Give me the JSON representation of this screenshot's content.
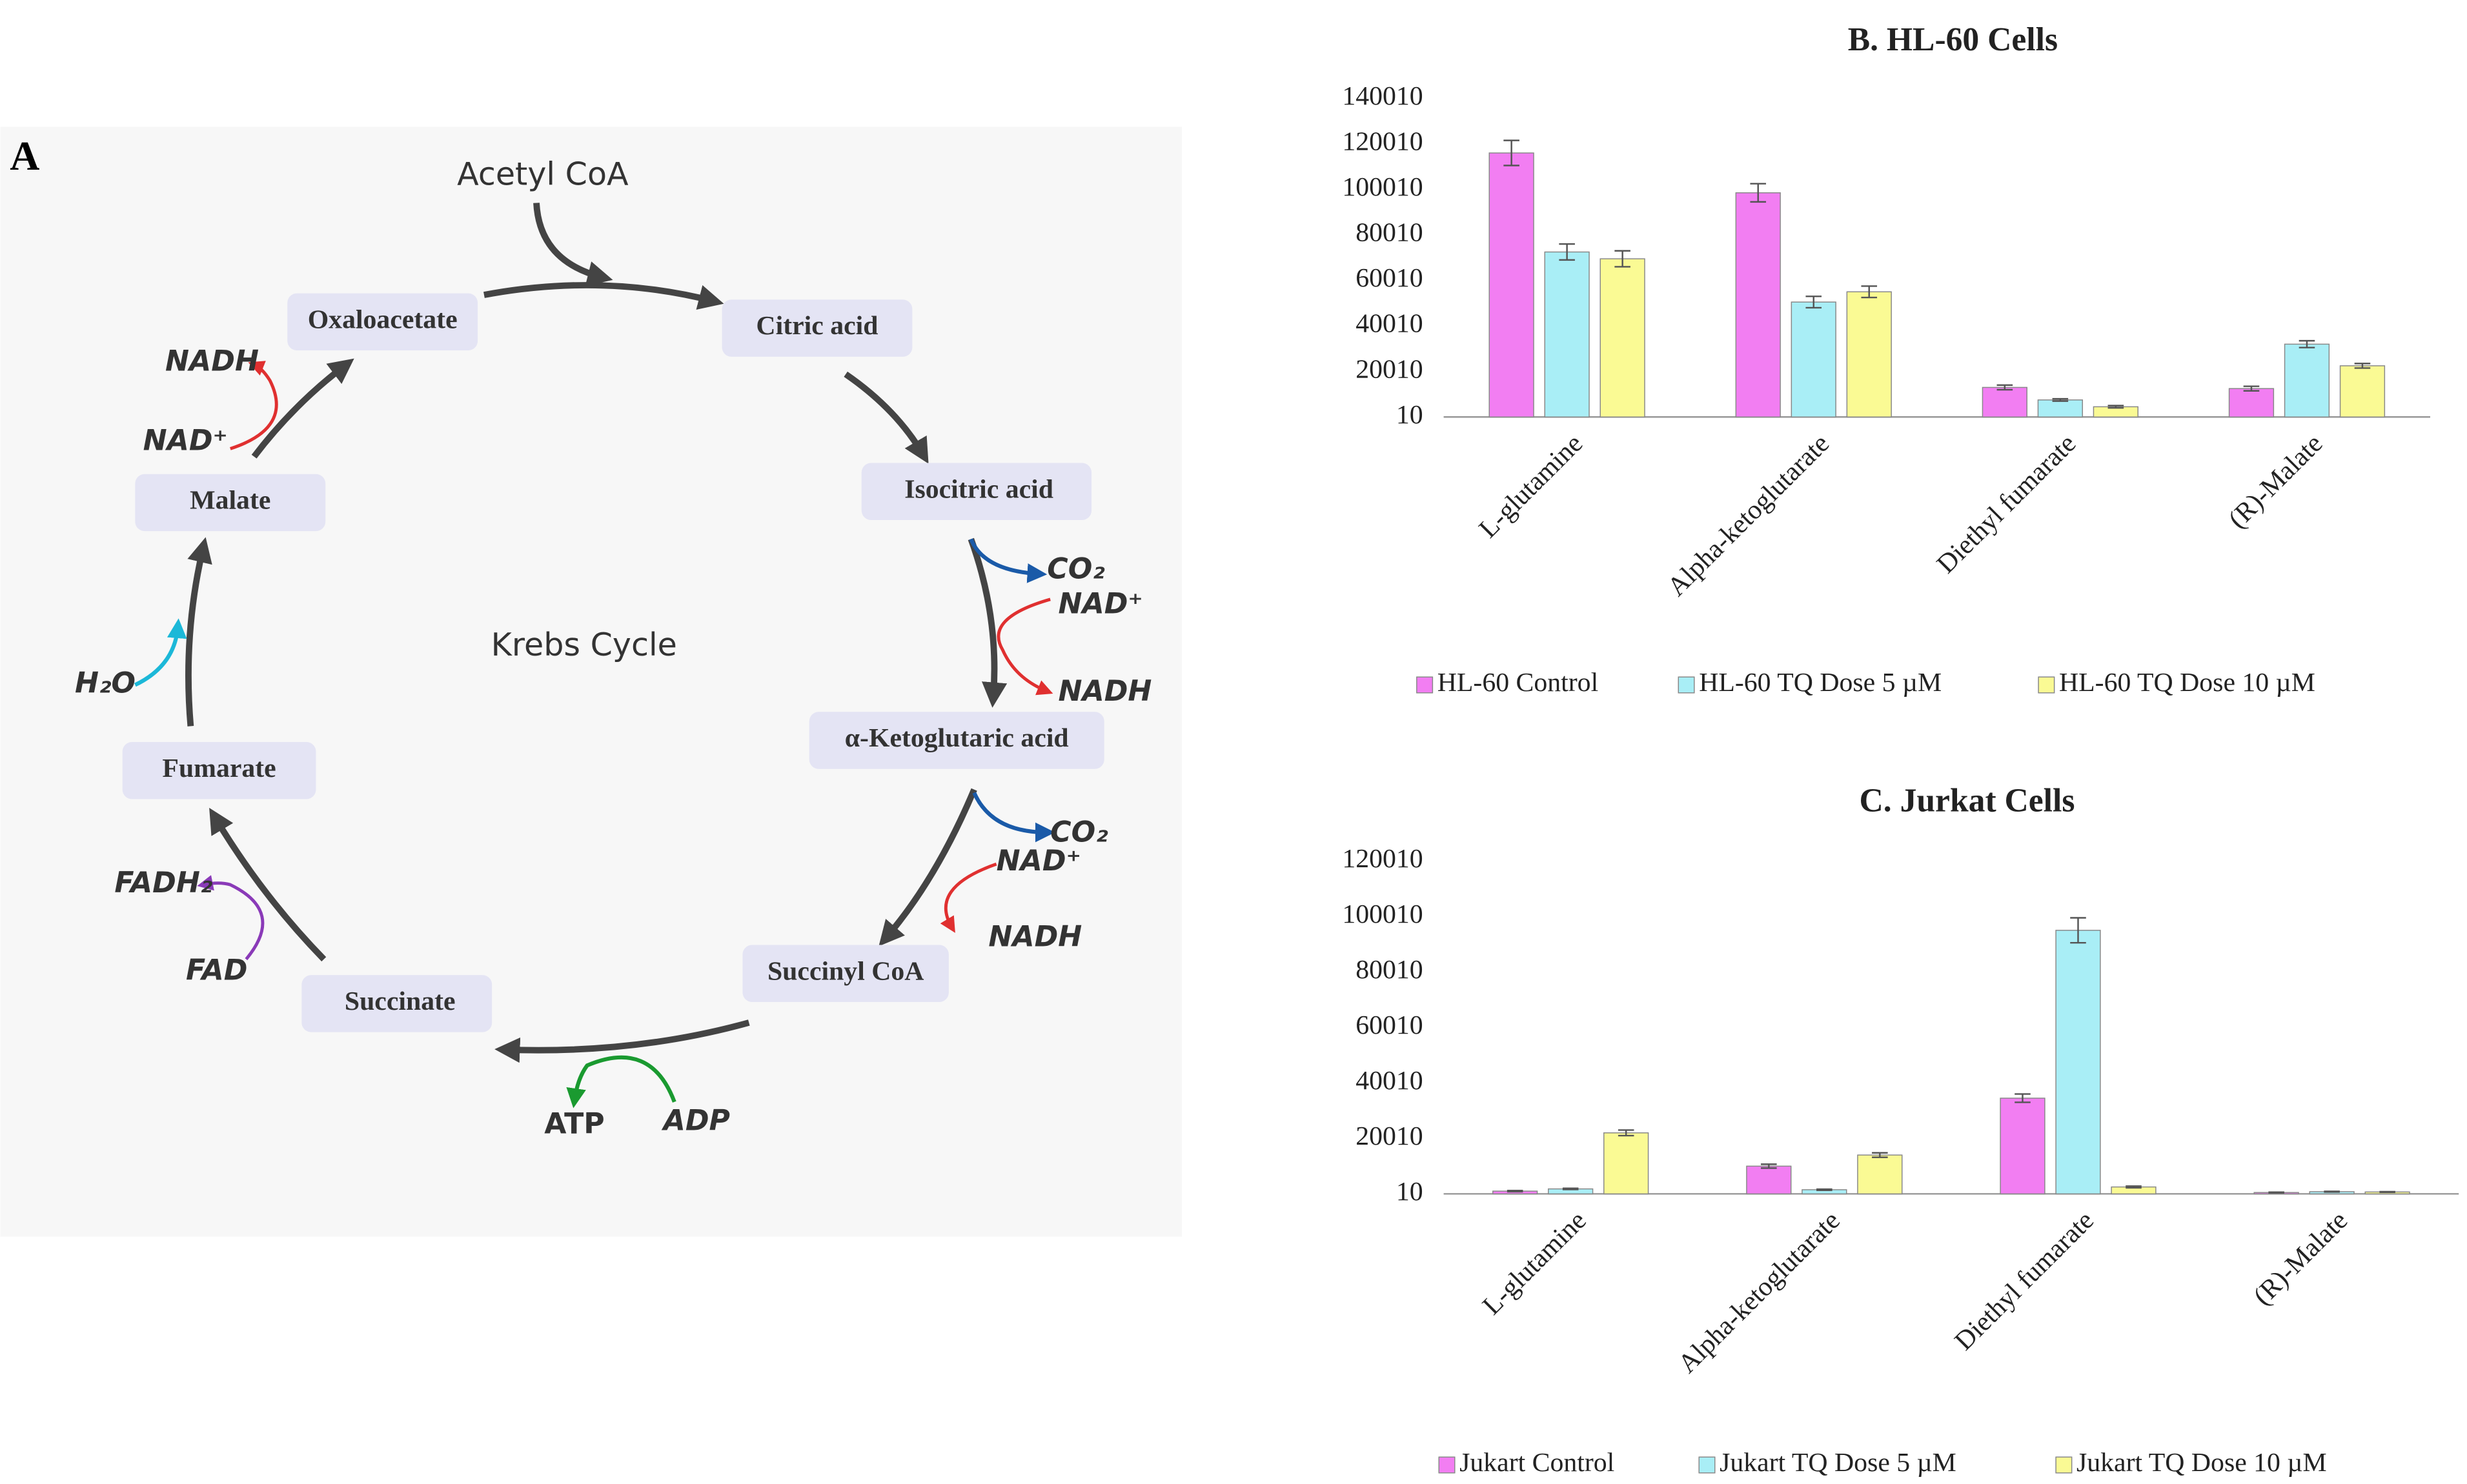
{
  "panel_label": "A",
  "diagram": {
    "title": "Krebs Cycle",
    "input": "Acetyl CoA",
    "nodes": [
      "Oxaloacetate",
      "Citric acid",
      "Isocitric acid",
      "α-Ketoglutaric acid",
      "Succinyl CoA",
      "Succinate",
      "Fumarate",
      "Malate"
    ],
    "cofactors": [
      "NADH",
      "NAD⁺",
      "H₂O",
      "FADH₂",
      "FAD",
      "ATP",
      "ADP",
      "CO₂",
      "NAD⁺",
      "NADH",
      "CO₂",
      "NAD⁺",
      "NADH"
    ]
  },
  "chart_data": [
    {
      "type": "bar",
      "title": "B. HL-60 Cells",
      "categories": [
        "L-glutamine",
        "Alpha-ketoglutarate",
        "Diethyl fumarate",
        "(R)-Malate"
      ],
      "series": [
        {
          "name": "HL-60 Control",
          "color": "#f27ef2",
          "values": [
            116000,
            98500,
            13000,
            12500
          ],
          "errors": [
            5500,
            4000,
            1000,
            1000
          ]
        },
        {
          "name": "HL-60 TQ Dose 5 µM",
          "color": "#a9eef6",
          "values": [
            72500,
            50500,
            7500,
            32000
          ],
          "errors": [
            3500,
            2500,
            500,
            1500
          ]
        },
        {
          "name": "HL-60 TQ Dose 10 µM",
          "color": "#fafa94",
          "values": [
            69500,
            55000,
            4500,
            22500
          ],
          "errors": [
            3500,
            2500,
            500,
            1000
          ]
        }
      ],
      "ylim": [
        10,
        140010
      ],
      "yticks": [
        10,
        20010,
        40010,
        60010,
        80010,
        100010,
        120010,
        140010
      ],
      "grid": false,
      "legend": "bottom"
    },
    {
      "type": "bar",
      "title": "C. Jurkat Cells",
      "categories": [
        "L-glutamine",
        "Alpha-ketoglutarate",
        "Diethyl fumarate",
        "(R)-Malate"
      ],
      "series": [
        {
          "name": "Jukart Control",
          "color": "#f27ef2",
          "values": [
            1000,
            10000,
            34500,
            500
          ],
          "errors": [
            200,
            700,
            1500,
            100
          ]
        },
        {
          "name": "Jukart TQ Dose 5 µM",
          "color": "#a9eef6",
          "values": [
            1800,
            1500,
            95000,
            800
          ],
          "errors": [
            200,
            200,
            4500,
            100
          ]
        },
        {
          "name": "Jukart TQ Dose 10 µM",
          "color": "#fafa94",
          "values": [
            22000,
            14000,
            2500,
            700
          ],
          "errors": [
            1000,
            800,
            300,
            100
          ]
        }
      ],
      "ylim": [
        10,
        120010
      ],
      "yticks": [
        10,
        20010,
        40010,
        60010,
        80010,
        100010,
        120010
      ],
      "grid": false,
      "legend": "bottom"
    }
  ]
}
